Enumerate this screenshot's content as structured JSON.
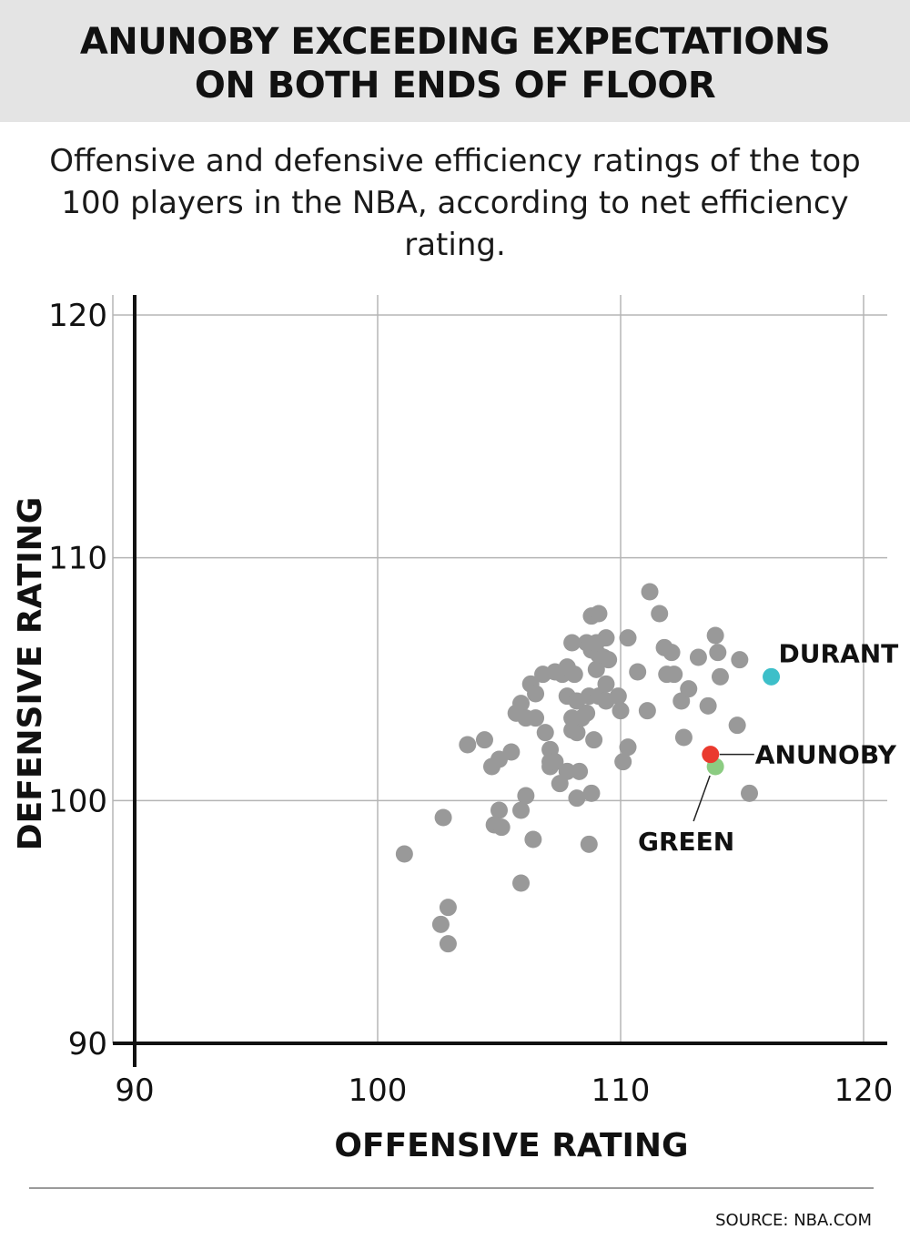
{
  "header": {
    "title_line1": "ANUNOBY EXCEEDING EXPECTATIONS",
    "title_line2": "ON BOTH ENDS OF  FLOOR",
    "subtitle": "Offensive and defensive efficiency ratings of the top 100 players in the NBA, according to net efficiency rating."
  },
  "footer": {
    "source": "SOURCE: NBA.COM"
  },
  "chart_data": {
    "type": "scatter",
    "xlabel": "OFFENSIVE RATING",
    "ylabel": "DEFENSIVE RATING",
    "xlim": [
      90,
      120
    ],
    "ylim": [
      90,
      120
    ],
    "x_ticks": [
      90,
      100,
      110,
      120
    ],
    "y_ticks": [
      90,
      100,
      110,
      120
    ],
    "grid": true,
    "colors": {
      "default": "#999999",
      "grid": "#b5b5b5",
      "axis": "#111111",
      "leader": "#222222"
    },
    "highlighted": [
      {
        "name": "DURANT",
        "x": 116.2,
        "y": 105.1,
        "color": "#3dbfc9"
      },
      {
        "name": "ANUNOBY",
        "x": 113.7,
        "y": 101.9,
        "color": "#ea3a2e"
      },
      {
        "name": "GREEN",
        "x": 113.9,
        "y": 101.4,
        "color": "#8ccc82"
      }
    ],
    "points": [
      [
        101.1,
        97.8
      ],
      [
        102.6,
        94.9
      ],
      [
        102.9,
        95.6
      ],
      [
        102.9,
        94.1
      ],
      [
        102.7,
        99.3
      ],
      [
        103.7,
        102.3
      ],
      [
        104.4,
        102.5
      ],
      [
        104.7,
        101.4
      ],
      [
        105.0,
        101.7
      ],
      [
        105.5,
        102.0
      ],
      [
        105.0,
        99.6
      ],
      [
        104.8,
        99.0
      ],
      [
        105.1,
        98.9
      ],
      [
        105.9,
        99.6
      ],
      [
        106.1,
        100.2
      ],
      [
        105.9,
        96.6
      ],
      [
        106.4,
        98.4
      ],
      [
        105.7,
        103.6
      ],
      [
        105.9,
        104.0
      ],
      [
        106.1,
        103.4
      ],
      [
        106.5,
        103.4
      ],
      [
        106.3,
        104.8
      ],
      [
        106.5,
        104.4
      ],
      [
        106.8,
        105.2
      ],
      [
        107.3,
        105.3
      ],
      [
        107.6,
        105.2
      ],
      [
        108.1,
        105.2
      ],
      [
        107.8,
        105.5
      ],
      [
        106.9,
        102.8
      ],
      [
        107.1,
        102.1
      ],
      [
        107.1,
        101.6
      ],
      [
        107.1,
        101.4
      ],
      [
        107.3,
        101.6
      ],
      [
        107.5,
        100.7
      ],
      [
        107.8,
        101.2
      ],
      [
        108.3,
        101.2
      ],
      [
        108.2,
        100.1
      ],
      [
        108.8,
        100.3
      ],
      [
        108.7,
        98.2
      ],
      [
        108.9,
        102.5
      ],
      [
        108.0,
        102.9
      ],
      [
        108.2,
        102.8
      ],
      [
        108.4,
        103.4
      ],
      [
        108.0,
        103.4
      ],
      [
        108.6,
        103.6
      ],
      [
        107.8,
        104.3
      ],
      [
        108.2,
        104.1
      ],
      [
        108.7,
        104.3
      ],
      [
        109.1,
        104.3
      ],
      [
        109.4,
        104.1
      ],
      [
        109.4,
        104.8
      ],
      [
        109.9,
        104.3
      ],
      [
        109.0,
        105.4
      ],
      [
        109.3,
        105.9
      ],
      [
        109.5,
        105.8
      ],
      [
        108.8,
        106.2
      ],
      [
        109.1,
        106.0
      ],
      [
        109.4,
        106.7
      ],
      [
        109.0,
        106.5
      ],
      [
        108.6,
        106.5
      ],
      [
        108.0,
        106.5
      ],
      [
        108.8,
        107.6
      ],
      [
        109.1,
        107.7
      ],
      [
        110.0,
        103.7
      ],
      [
        110.3,
        102.2
      ],
      [
        110.1,
        101.6
      ],
      [
        110.7,
        105.3
      ],
      [
        110.3,
        106.7
      ],
      [
        111.1,
        103.7
      ],
      [
        111.2,
        108.6
      ],
      [
        111.6,
        107.7
      ],
      [
        111.8,
        106.3
      ],
      [
        112.1,
        106.1
      ],
      [
        111.9,
        105.2
      ],
      [
        112.2,
        105.2
      ],
      [
        112.5,
        104.1
      ],
      [
        112.8,
        104.6
      ],
      [
        112.6,
        102.6
      ],
      [
        113.2,
        105.9
      ],
      [
        113.6,
        103.9
      ],
      [
        113.9,
        106.8
      ],
      [
        114.0,
        106.1
      ],
      [
        114.1,
        105.1
      ],
      [
        114.9,
        105.8
      ],
      [
        114.8,
        103.1
      ],
      [
        115.3,
        100.3
      ]
    ]
  }
}
